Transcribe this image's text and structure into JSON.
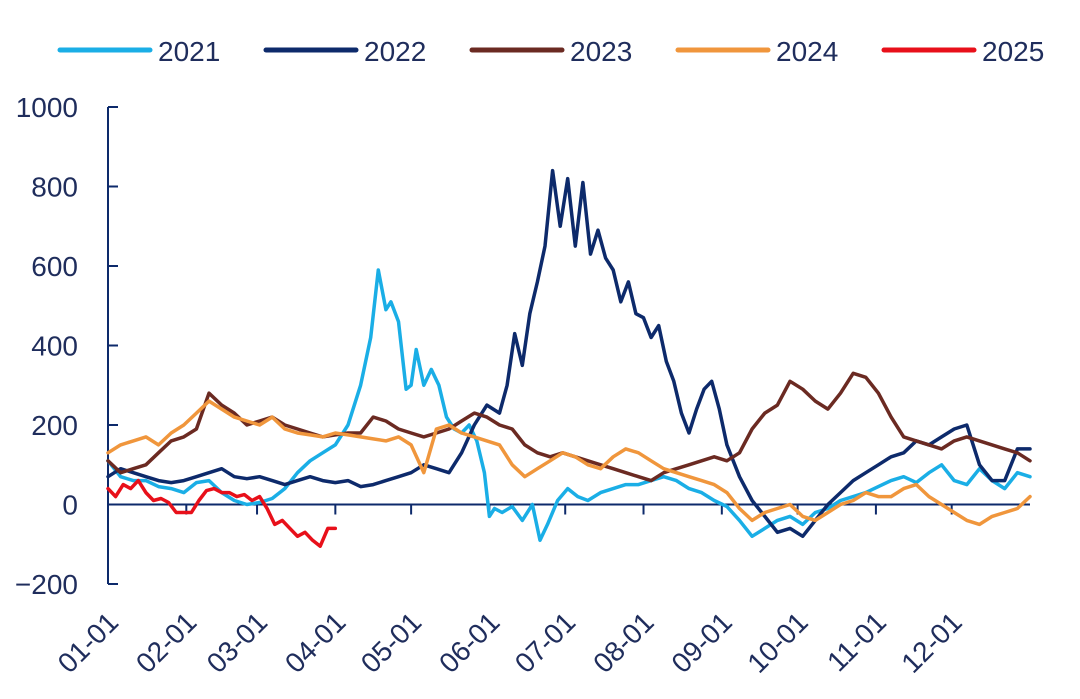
{
  "chart_data": {
    "type": "line",
    "title": "",
    "xlabel": "",
    "ylabel": "",
    "ylim": [
      -200,
      1000
    ],
    "yticks": [
      -200,
      0,
      200,
      400,
      600,
      800,
      1000
    ],
    "ytick_labels": [
      "−200",
      "0",
      "200",
      "400",
      "600",
      "800",
      "1000"
    ],
    "xlim": [
      0,
      365
    ],
    "x_unit": "day of year",
    "xtick_positions": [
      0,
      31,
      59,
      90,
      120,
      151,
      181,
      212,
      243,
      273,
      304,
      334
    ],
    "categories": [
      "01-01",
      "02-01",
      "03-01",
      "04-01",
      "05-01",
      "06-01",
      "07-01",
      "08-01",
      "09-01",
      "10-01",
      "11-01",
      "12-01"
    ],
    "legend_position": "top",
    "series": [
      {
        "name": "2021",
        "color": "#1aaee6",
        "x": [
          0,
          5,
          10,
          15,
          20,
          25,
          30,
          35,
          40,
          45,
          50,
          55,
          60,
          65,
          70,
          75,
          80,
          85,
          90,
          95,
          100,
          104,
          107,
          110,
          112,
          115,
          118,
          120,
          122,
          125,
          128,
          131,
          134,
          137,
          140,
          143,
          146,
          149,
          151,
          153,
          156,
          160,
          164,
          168,
          171,
          174,
          178,
          182,
          186,
          190,
          195,
          200,
          205,
          210,
          215,
          220,
          225,
          230,
          235,
          240,
          245,
          250,
          255,
          260,
          265,
          270,
          275,
          280,
          285,
          290,
          295,
          300,
          305,
          310,
          315,
          320,
          325,
          330,
          335,
          340,
          345,
          350,
          355,
          360,
          365
        ],
        "values": [
          110,
          70,
          60,
          60,
          45,
          40,
          30,
          55,
          60,
          30,
          10,
          0,
          5,
          15,
          40,
          80,
          110,
          130,
          150,
          200,
          300,
          420,
          590,
          490,
          510,
          460,
          290,
          300,
          390,
          300,
          340,
          300,
          220,
          190,
          180,
          200,
          160,
          80,
          -30,
          -10,
          -20,
          -5,
          -40,
          0,
          -90,
          -50,
          10,
          40,
          20,
          10,
          30,
          40,
          50,
          50,
          60,
          70,
          60,
          40,
          30,
          10,
          -5,
          -40,
          -80,
          -60,
          -40,
          -30,
          -50,
          -20,
          -10,
          10,
          20,
          30,
          45,
          60,
          70,
          55,
          80,
          100,
          60,
          50,
          90,
          60,
          40,
          80,
          70
        ]
      },
      {
        "name": "2022",
        "color": "#0d2a6b",
        "x": [
          0,
          5,
          10,
          15,
          20,
          25,
          30,
          35,
          40,
          45,
          50,
          55,
          60,
          65,
          70,
          75,
          80,
          85,
          90,
          95,
          100,
          105,
          110,
          115,
          120,
          125,
          130,
          135,
          140,
          145,
          150,
          155,
          158,
          161,
          164,
          167,
          170,
          173,
          176,
          179,
          182,
          185,
          188,
          191,
          194,
          197,
          200,
          203,
          206,
          209,
          212,
          215,
          218,
          221,
          224,
          227,
          230,
          233,
          236,
          239,
          242,
          245,
          250,
          255,
          260,
          265,
          270,
          275,
          280,
          285,
          290,
          295,
          300,
          305,
          310,
          315,
          320,
          325,
          330,
          335,
          340,
          345,
          350,
          355,
          360,
          365
        ],
        "values": [
          70,
          90,
          80,
          70,
          60,
          55,
          60,
          70,
          80,
          90,
          70,
          65,
          70,
          60,
          50,
          60,
          70,
          60,
          55,
          60,
          45,
          50,
          60,
          70,
          80,
          100,
          90,
          80,
          130,
          200,
          250,
          230,
          300,
          430,
          350,
          480,
          560,
          650,
          840,
          700,
          820,
          650,
          810,
          630,
          690,
          620,
          590,
          510,
          560,
          480,
          470,
          420,
          450,
          360,
          310,
          230,
          180,
          240,
          290,
          310,
          240,
          150,
          70,
          10,
          -30,
          -70,
          -60,
          -80,
          -40,
          0,
          30,
          60,
          80,
          100,
          120,
          130,
          160,
          150,
          170,
          190,
          200,
          100,
          60,
          60,
          140,
          140
        ]
      },
      {
        "name": "2023",
        "color": "#6b2a22",
        "x": [
          0,
          5,
          10,
          15,
          20,
          25,
          30,
          35,
          40,
          45,
          50,
          55,
          60,
          65,
          70,
          75,
          80,
          85,
          90,
          95,
          100,
          105,
          110,
          115,
          120,
          125,
          130,
          135,
          140,
          145,
          150,
          155,
          160,
          165,
          170,
          175,
          180,
          185,
          190,
          195,
          200,
          205,
          210,
          215,
          220,
          225,
          230,
          235,
          240,
          245,
          250,
          255,
          260,
          265,
          270,
          275,
          280,
          285,
          290,
          295,
          300,
          305,
          310,
          315,
          320,
          325,
          330,
          335,
          340,
          345,
          350,
          355,
          360,
          365
        ],
        "values": [
          110,
          80,
          90,
          100,
          130,
          160,
          170,
          190,
          280,
          250,
          230,
          200,
          210,
          220,
          200,
          190,
          180,
          170,
          175,
          180,
          180,
          220,
          210,
          190,
          180,
          170,
          180,
          190,
          210,
          230,
          220,
          200,
          190,
          150,
          130,
          120,
          130,
          120,
          110,
          100,
          90,
          80,
          70,
          60,
          80,
          90,
          100,
          110,
          120,
          110,
          130,
          190,
          230,
          250,
          310,
          290,
          260,
          240,
          280,
          330,
          320,
          280,
          220,
          170,
          160,
          150,
          140,
          160,
          170,
          160,
          150,
          140,
          130,
          110
        ]
      },
      {
        "name": "2024",
        "color": "#f0963c",
        "x": [
          0,
          5,
          10,
          15,
          20,
          25,
          30,
          35,
          40,
          45,
          50,
          55,
          60,
          65,
          70,
          75,
          80,
          85,
          90,
          95,
          100,
          105,
          110,
          115,
          120,
          125,
          130,
          135,
          140,
          145,
          150,
          155,
          160,
          165,
          170,
          175,
          180,
          185,
          190,
          195,
          200,
          205,
          210,
          215,
          220,
          225,
          230,
          235,
          240,
          245,
          250,
          255,
          260,
          265,
          270,
          275,
          280,
          285,
          290,
          295,
          300,
          305,
          310,
          315,
          320,
          325,
          330,
          335,
          340,
          345,
          350,
          355,
          360,
          365
        ],
        "values": [
          130,
          150,
          160,
          170,
          150,
          180,
          200,
          230,
          260,
          240,
          220,
          210,
          200,
          220,
          190,
          180,
          175,
          170,
          180,
          175,
          170,
          165,
          160,
          170,
          150,
          80,
          190,
          200,
          180,
          170,
          160,
          150,
          100,
          70,
          90,
          110,
          130,
          120,
          100,
          90,
          120,
          140,
          130,
          110,
          90,
          80,
          70,
          60,
          50,
          30,
          -10,
          -40,
          -20,
          -10,
          0,
          -30,
          -40,
          -20,
          0,
          10,
          30,
          20,
          20,
          40,
          50,
          20,
          0,
          -20,
          -40,
          -50,
          -30,
          -20,
          -10,
          20
        ]
      },
      {
        "name": "2025",
        "color": "#e8101a",
        "x": [
          0,
          3,
          6,
          9,
          12,
          15,
          18,
          21,
          24,
          27,
          30,
          33,
          36,
          39,
          42,
          45,
          48,
          51,
          54,
          57,
          60,
          63,
          66,
          69,
          72,
          75,
          78,
          81,
          84,
          87,
          90
        ],
        "values": [
          40,
          20,
          50,
          40,
          60,
          30,
          10,
          15,
          5,
          -20,
          -20,
          -20,
          10,
          35,
          40,
          30,
          30,
          20,
          25,
          10,
          20,
          -10,
          -50,
          -40,
          -60,
          -80,
          -70,
          -90,
          -105,
          -60,
          -60
        ]
      }
    ]
  }
}
